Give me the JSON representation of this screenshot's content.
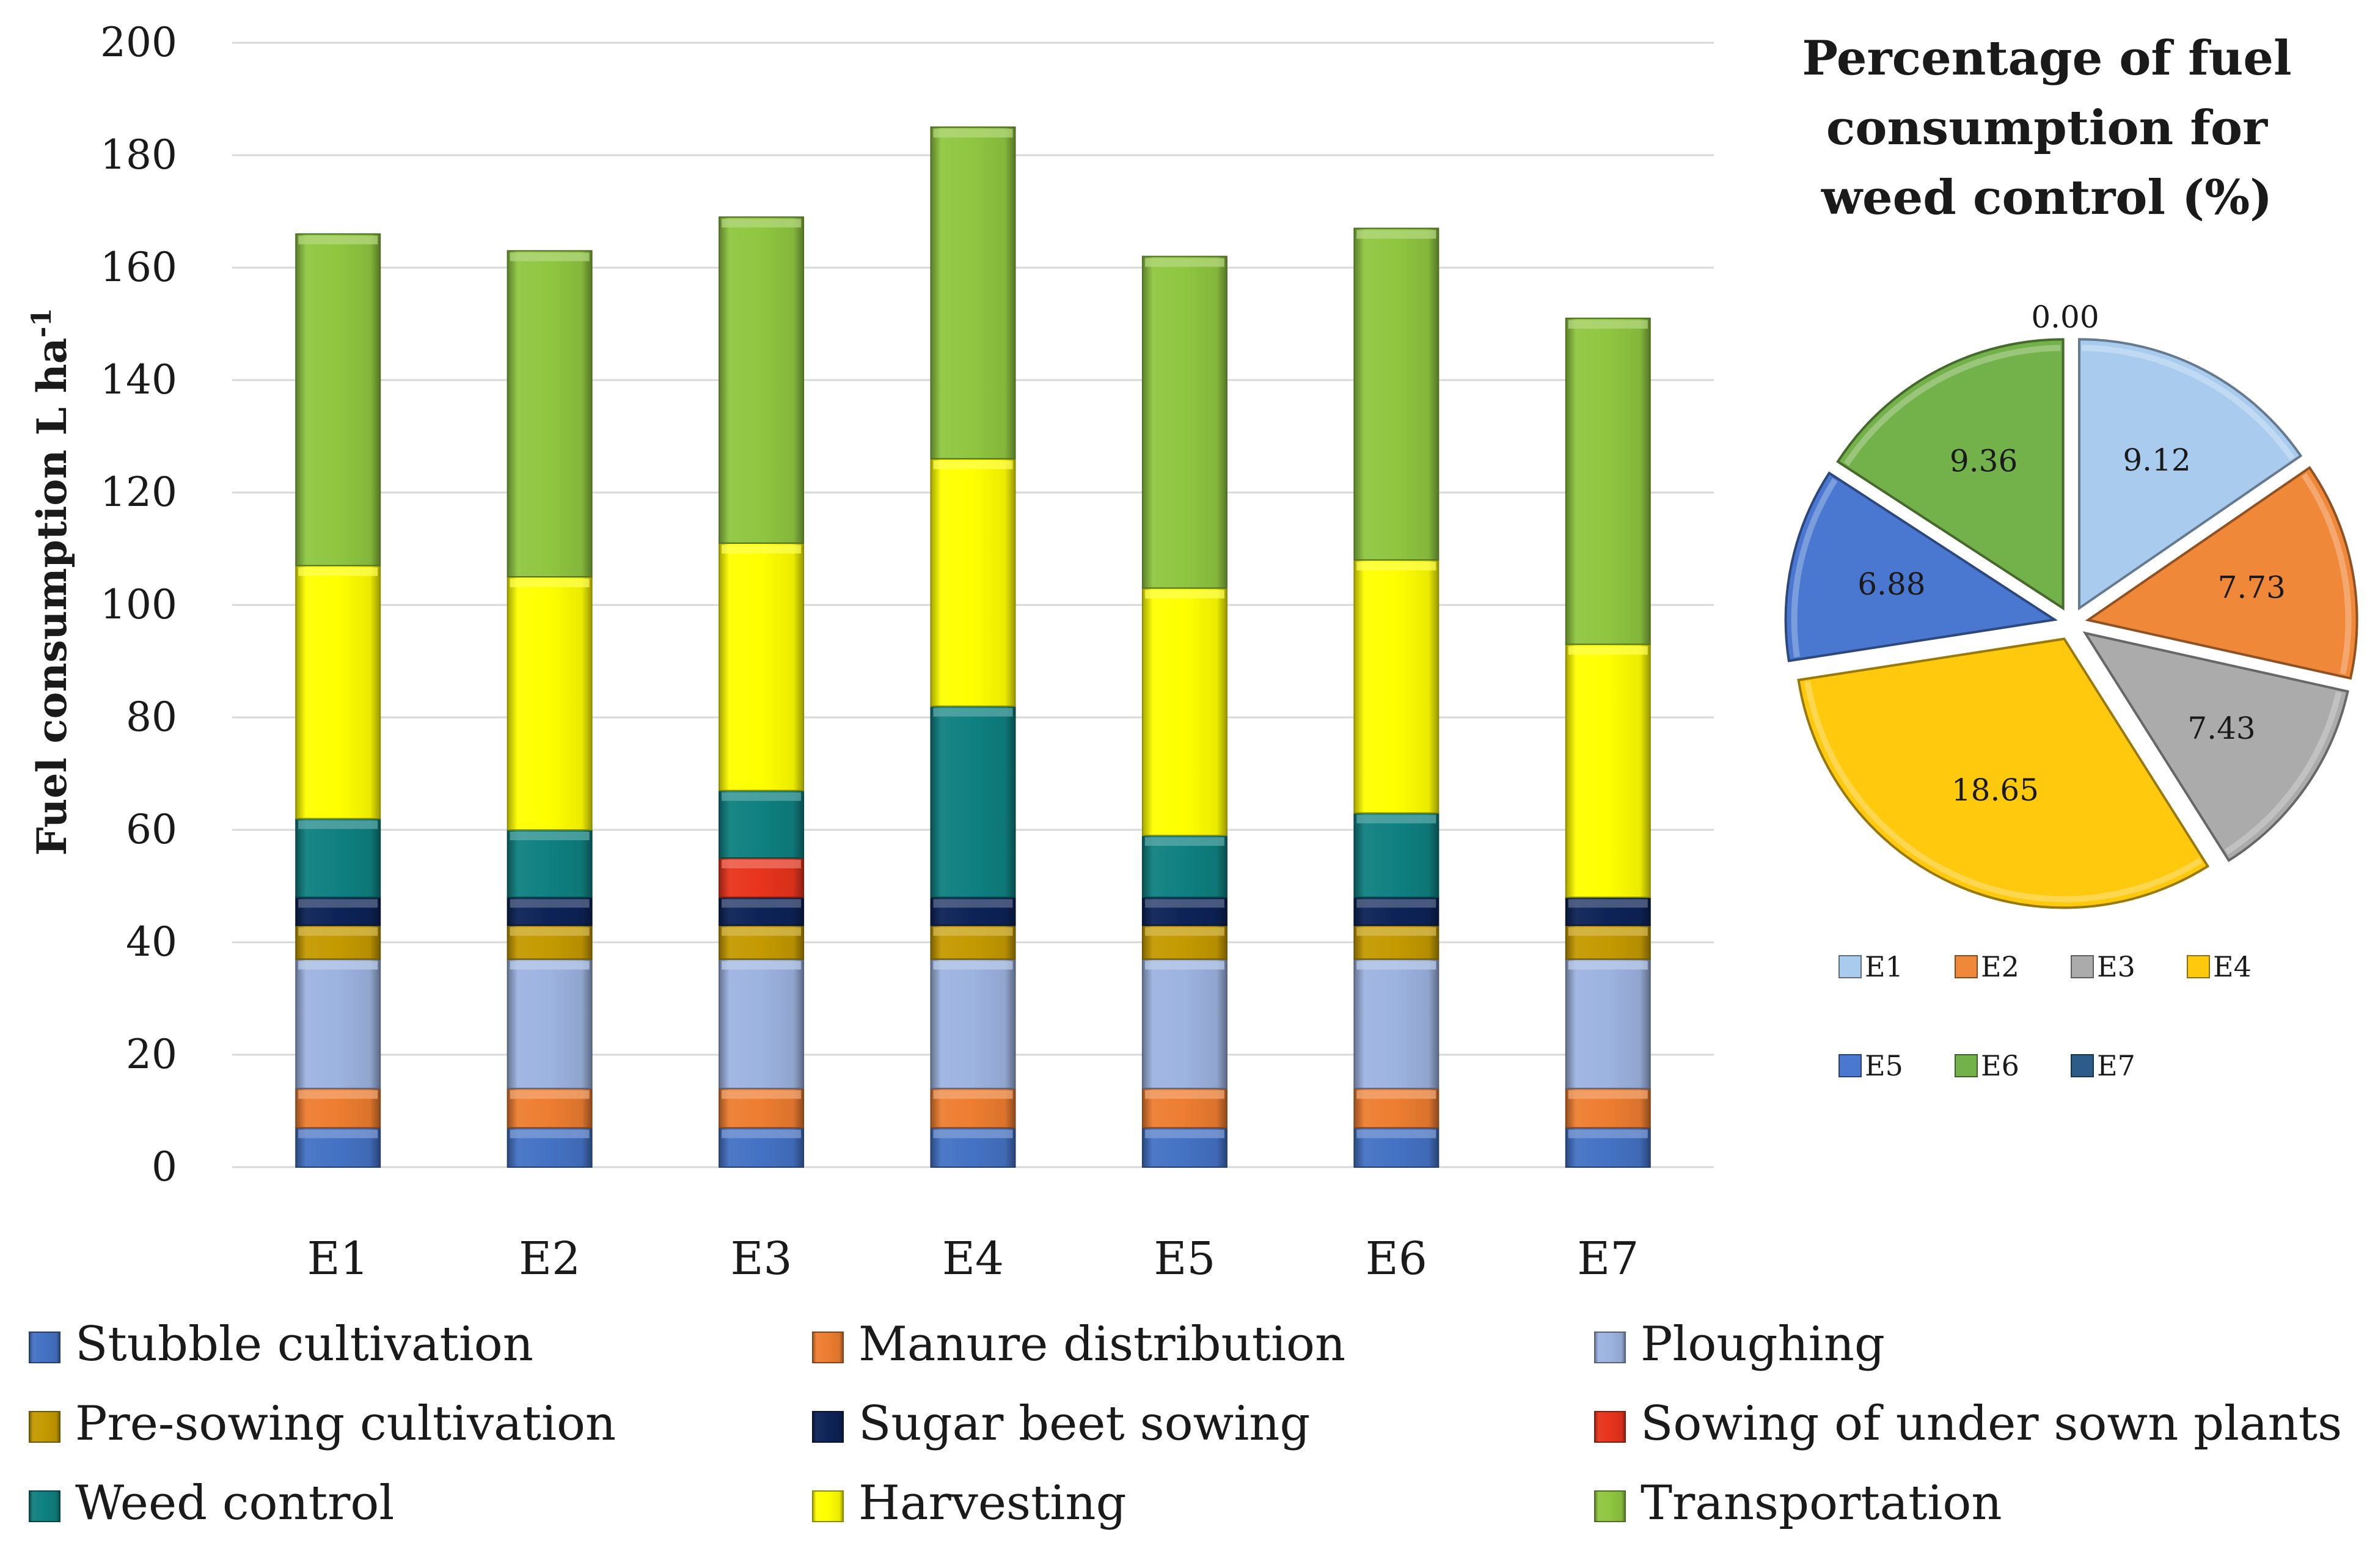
{
  "chart_data": [
    {
      "type": "bar",
      "stacked": true,
      "title": "",
      "xlabel": "",
      "ylabel": "Fuel consumption L ha",
      "ylabel_superscript": "-1",
      "ylim": [
        0,
        200
      ],
      "ytick_step": 20,
      "yticks": [
        "0",
        "20",
        "40",
        "60",
        "80",
        "100",
        "120",
        "140",
        "160",
        "180",
        "200"
      ],
      "grid": true,
      "legend_position": "bottom",
      "categories": [
        "E1",
        "E2",
        "E3",
        "E4",
        "E5",
        "E6",
        "E7"
      ],
      "series": [
        {
          "name": "Stubble cultivation",
          "color": "#4472C4",
          "values": [
            7,
            7,
            7,
            7,
            7,
            7,
            7
          ]
        },
        {
          "name": "Manure distribution",
          "color": "#ED7D31",
          "values": [
            7,
            7,
            7,
            7,
            7,
            7,
            7
          ]
        },
        {
          "name": "Ploughing",
          "color": "#9DB3E0",
          "values": [
            23,
            23,
            23,
            23,
            23,
            23,
            23
          ]
        },
        {
          "name": "Pre-sowing cultivation",
          "color": "#C49A00",
          "values": [
            6,
            6,
            6,
            6,
            6,
            6,
            6
          ]
        },
        {
          "name": "Sugar beet sowing",
          "color": "#0D2357",
          "values": [
            5,
            5,
            5,
            5,
            5,
            5,
            5
          ]
        },
        {
          "name": "Sowing of under sown plants",
          "color": "#E8341C",
          "values": [
            0,
            0,
            7,
            0,
            0,
            0,
            0
          ]
        },
        {
          "name": "Weed control",
          "color": "#0F8080",
          "values": [
            14,
            12,
            12,
            34,
            11,
            15,
            0
          ]
        },
        {
          "name": "Harvesting",
          "color": "#FFFF00",
          "values": [
            45,
            45,
            44,
            44,
            44,
            45,
            45
          ]
        },
        {
          "name": "Transportation",
          "color": "#8FC640",
          "values": [
            59,
            58,
            58,
            59,
            59,
            59,
            58
          ]
        }
      ]
    },
    {
      "type": "pie",
      "title": "Percentage of fuel consumption for weed control (%)",
      "title_lines": [
        "Percentage of fuel",
        "consumption for",
        "weed control (%)"
      ],
      "legend_position": "bottom",
      "slices": [
        {
          "label": "E1",
          "value": 9.12,
          "text": "9.12",
          "color": "#A9CCEE"
        },
        {
          "label": "E2",
          "value": 7.73,
          "text": "7.73",
          "color": "#F0883A"
        },
        {
          "label": "E3",
          "value": 7.43,
          "text": "7.43",
          "color": "#ABABAB"
        },
        {
          "label": "E4",
          "value": 18.65,
          "text": "18.65",
          "color": "#FFC90E"
        },
        {
          "label": "E5",
          "value": 6.88,
          "text": "6.88",
          "color": "#4A78D0"
        },
        {
          "label": "E6",
          "value": 9.36,
          "text": "9.36",
          "color": "#73B14A"
        },
        {
          "label": "E7",
          "value": 0.0,
          "text": "0.00",
          "color": "#2E5C8A"
        }
      ]
    }
  ]
}
